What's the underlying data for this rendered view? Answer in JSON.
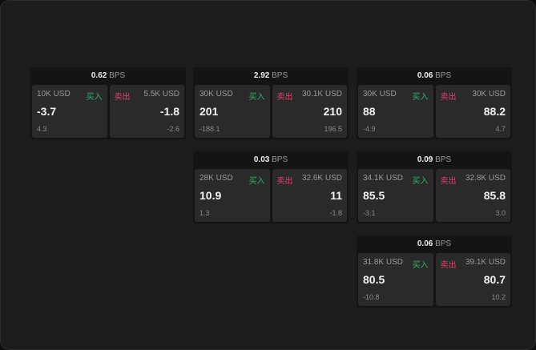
{
  "bps_unit": "BPS",
  "buy_label": "买入",
  "sell_label": "卖出",
  "colors": {
    "buy": "#2fb36b",
    "sell": "#e0416b"
  },
  "cards": [
    {
      "bps": "0.62",
      "buy": {
        "qty": "10K USD",
        "price": "-3.7",
        "change": "4.3"
      },
      "sell": {
        "qty": "5.5K USD",
        "price": "-1.8",
        "change": "-2.6"
      }
    },
    {
      "bps": "2.92",
      "buy": {
        "qty": "30K USD",
        "price": "201",
        "change": "-188.1"
      },
      "sell": {
        "qty": "30.1K USD",
        "price": "210",
        "change": "196.5"
      }
    },
    {
      "bps": "0.06",
      "buy": {
        "qty": "30K USD",
        "price": "88",
        "change": "-4.9"
      },
      "sell": {
        "qty": "30K USD",
        "price": "88.2",
        "change": "4.7"
      }
    },
    {
      "bps": "0.03",
      "buy": {
        "qty": "28K USD",
        "price": "10.9",
        "change": "1.3"
      },
      "sell": {
        "qty": "32.6K USD",
        "price": "11",
        "change": "-1.8"
      }
    },
    {
      "bps": "0.09",
      "buy": {
        "qty": "34.1K USD",
        "price": "85.5",
        "change": "-3.1"
      },
      "sell": {
        "qty": "32.8K USD",
        "price": "85.8",
        "change": "3.0"
      }
    },
    {
      "bps": "0.06",
      "buy": {
        "qty": "31.8K USD",
        "price": "80.5",
        "change": "-10.8"
      },
      "sell": {
        "qty": "39.1K USD",
        "price": "80.7",
        "change": "10.2"
      }
    }
  ]
}
